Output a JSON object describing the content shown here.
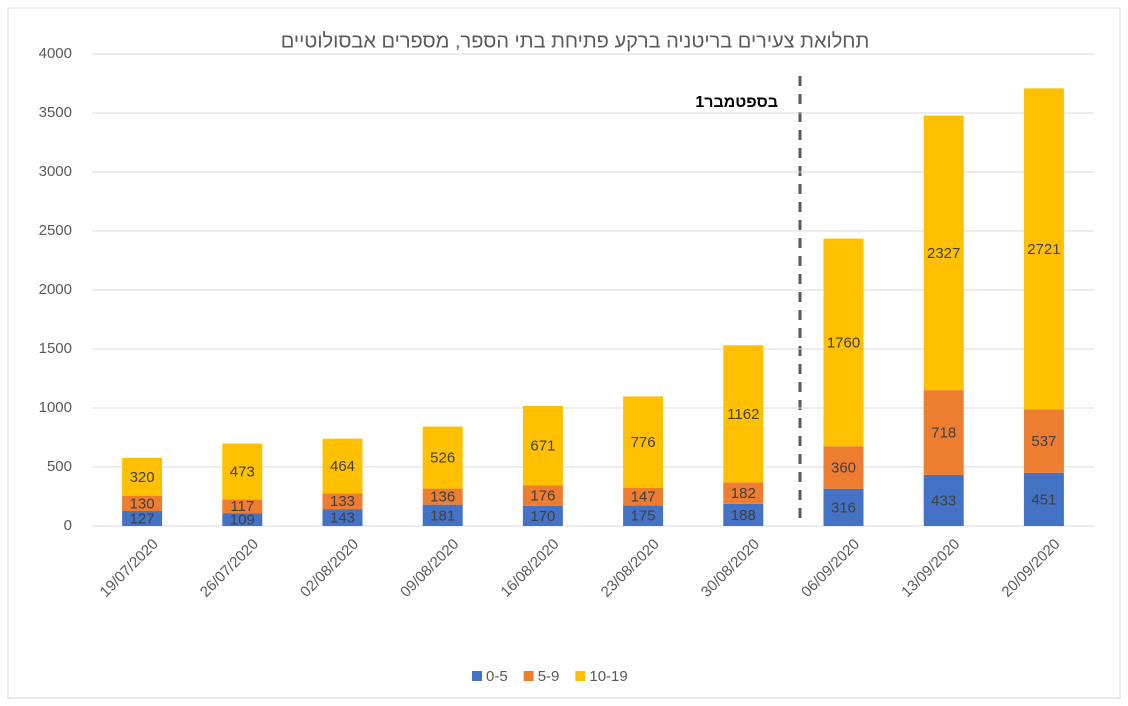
{
  "chart_data": {
    "type": "stacked_bar",
    "title": "תחלואת צעירים בריטניה ברקע פתיחת בתי הספר, מספרים אבסולוטיים",
    "annotation": "1בספטמבר",
    "categories": [
      "19/07/2020",
      "26/07/2020",
      "02/08/2020",
      "09/08/2020",
      "16/08/2020",
      "23/08/2020",
      "30/08/2020",
      "06/09/2020",
      "13/09/2020",
      "20/09/2020"
    ],
    "series": [
      {
        "name": "0-5",
        "color": "#4472c4",
        "values": [
          127,
          109,
          143,
          181,
          170,
          175,
          188,
          316,
          433,
          451
        ]
      },
      {
        "name": "5-9",
        "color": "#ed7d31",
        "values": [
          130,
          117,
          133,
          136,
          176,
          147,
          182,
          360,
          718,
          537
        ]
      },
      {
        "name": "10-19",
        "color": "#ffc000",
        "values": [
          320,
          473,
          464,
          526,
          671,
          776,
          1162,
          1760,
          2327,
          2721
        ]
      }
    ],
    "ylim": [
      0,
      4000
    ],
    "yticks": [
      0,
      500,
      1000,
      1500,
      2000,
      2500,
      3000,
      3500,
      4000
    ],
    "grid": true,
    "legend": "bottom"
  }
}
